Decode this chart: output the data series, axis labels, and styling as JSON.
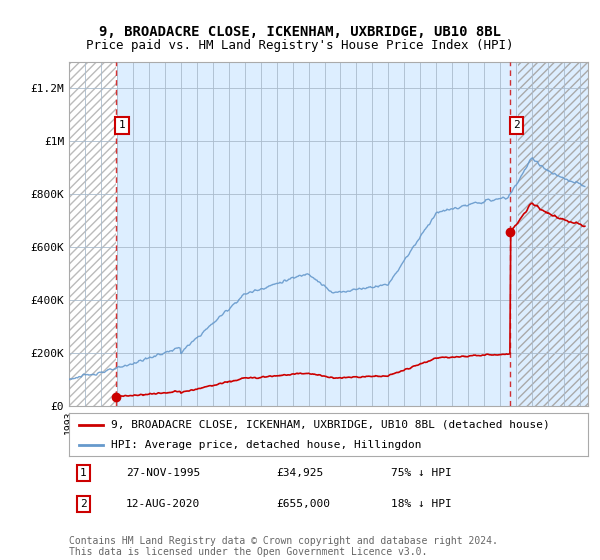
{
  "title": "9, BROADACRE CLOSE, ICKENHAM, UXBRIDGE, UB10 8BL",
  "subtitle": "Price paid vs. HM Land Registry's House Price Index (HPI)",
  "ylim": [
    0,
    1300000
  ],
  "yticks": [
    0,
    200000,
    400000,
    600000,
    800000,
    1000000,
    1200000
  ],
  "ytick_labels": [
    "£0",
    "£200K",
    "£400K",
    "£600K",
    "£800K",
    "£1M",
    "£1.2M"
  ],
  "xlim_start": 1993.0,
  "xlim_end": 2025.5,
  "sale1_year": 1995.92,
  "sale1_price": 34925,
  "sale2_year": 2020.62,
  "sale2_price": 655000,
  "hpi_color": "#6699cc",
  "sale_color": "#cc0000",
  "plot_bg_color": "#ddeeff",
  "bg_color": "#ffffff",
  "grid_color": "#aabbcc",
  "legend_entry1": "9, BROADACRE CLOSE, ICKENHAM, UXBRIDGE, UB10 8BL (detached house)",
  "legend_entry2": "HPI: Average price, detached house, Hillingdon",
  "annotation1_date": "27-NOV-1995",
  "annotation1_price": "£34,925",
  "annotation1_hpi": "75% ↓ HPI",
  "annotation2_date": "12-AUG-2020",
  "annotation2_price": "£655,000",
  "annotation2_hpi": "18% ↓ HPI",
  "footnote": "Contains HM Land Registry data © Crown copyright and database right 2024.\nThis data is licensed under the Open Government Licence v3.0.",
  "title_fontsize": 10,
  "subtitle_fontsize": 9,
  "tick_fontsize": 8,
  "legend_fontsize": 8,
  "annotation_fontsize": 8,
  "footnote_fontsize": 7
}
